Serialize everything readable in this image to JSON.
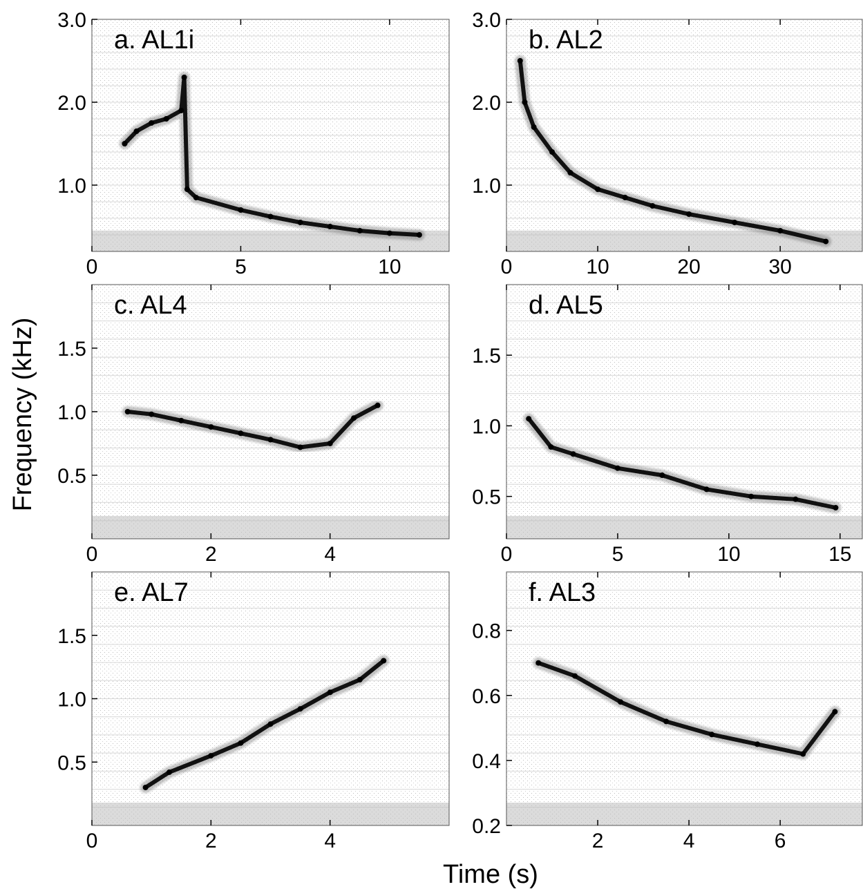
{
  "figure": {
    "ylabel": "Frequency (kHz)",
    "xlabel": "Time (s)"
  },
  "chart_data": [
    {
      "id": "a",
      "type": "spectrogram",
      "title": "a. AL1i",
      "xlim": [
        0,
        12
      ],
      "ylim": [
        0.2,
        3.0
      ],
      "xticks": [
        0,
        5,
        10
      ],
      "xtick_labels": [
        "0",
        "5",
        "10"
      ],
      "yticks": [
        1.0,
        2.0,
        3.0
      ],
      "ytick_labels": [
        "1.0",
        "2.0",
        "3.0"
      ],
      "trace": [
        [
          1.1,
          1.5
        ],
        [
          1.5,
          1.65
        ],
        [
          2.0,
          1.75
        ],
        [
          2.5,
          1.8
        ],
        [
          3.0,
          1.9
        ],
        [
          3.1,
          2.3
        ],
        [
          3.2,
          0.95
        ],
        [
          3.5,
          0.85
        ],
        [
          5,
          0.7
        ],
        [
          6,
          0.62
        ],
        [
          7,
          0.55
        ],
        [
          8,
          0.5
        ],
        [
          9,
          0.45
        ],
        [
          10,
          0.42
        ],
        [
          11,
          0.4
        ]
      ]
    },
    {
      "id": "b",
      "type": "spectrogram",
      "title": "b. AL2",
      "xlim": [
        0,
        39
      ],
      "ylim": [
        0.2,
        3.0
      ],
      "xticks": [
        0,
        10,
        20,
        30
      ],
      "xtick_labels": [
        "0",
        "10",
        "20",
        "30"
      ],
      "yticks": [
        1.0,
        2.0,
        3.0
      ],
      "ytick_labels": [
        "1.0",
        "2.0",
        "3.0"
      ],
      "trace": [
        [
          1.5,
          2.5
        ],
        [
          2,
          2.0
        ],
        [
          3,
          1.7
        ],
        [
          5,
          1.4
        ],
        [
          7,
          1.15
        ],
        [
          10,
          0.95
        ],
        [
          13,
          0.85
        ],
        [
          16,
          0.75
        ],
        [
          20,
          0.65
        ],
        [
          25,
          0.55
        ],
        [
          30,
          0.45
        ],
        [
          35,
          0.32
        ]
      ]
    },
    {
      "id": "c",
      "type": "spectrogram",
      "title": "c. AL4",
      "xlim": [
        0,
        6
      ],
      "ylim": [
        0,
        2.0
      ],
      "xticks": [
        0,
        2,
        4
      ],
      "xtick_labels": [
        "0",
        "2",
        "4"
      ],
      "yticks": [
        0.5,
        1.0,
        1.5
      ],
      "ytick_labels": [
        "0.5",
        "1.0",
        "1.5"
      ],
      "trace": [
        [
          0.6,
          1.0
        ],
        [
          1.0,
          0.98
        ],
        [
          1.5,
          0.93
        ],
        [
          2.0,
          0.88
        ],
        [
          2.5,
          0.83
        ],
        [
          3.0,
          0.78
        ],
        [
          3.5,
          0.72
        ],
        [
          4.0,
          0.75
        ],
        [
          4.4,
          0.95
        ],
        [
          4.8,
          1.05
        ]
      ]
    },
    {
      "id": "d",
      "type": "spectrogram",
      "title": "d. AL5",
      "xlim": [
        0,
        16
      ],
      "ylim": [
        0.2,
        2.0
      ],
      "xticks": [
        0,
        5,
        10,
        15
      ],
      "xtick_labels": [
        "0",
        "5",
        "10",
        "15"
      ],
      "yticks": [
        0.5,
        1.0,
        1.5
      ],
      "ytick_labels": [
        "0.5",
        "1.0",
        "1.5"
      ],
      "trace": [
        [
          1,
          1.05
        ],
        [
          2,
          0.85
        ],
        [
          3,
          0.8
        ],
        [
          5,
          0.7
        ],
        [
          7,
          0.65
        ],
        [
          9,
          0.55
        ],
        [
          11,
          0.5
        ],
        [
          13,
          0.48
        ],
        [
          14.8,
          0.42
        ]
      ]
    },
    {
      "id": "e",
      "type": "spectrogram",
      "title": "e. AL7",
      "xlim": [
        0,
        6
      ],
      "ylim": [
        0,
        2.0
      ],
      "xticks": [
        0,
        2,
        4
      ],
      "xtick_labels": [
        "0",
        "2",
        "4"
      ],
      "yticks": [
        0.5,
        1.0,
        1.5
      ],
      "ytick_labels": [
        "0.5",
        "1.0",
        "1.5"
      ],
      "trace": [
        [
          0.9,
          0.3
        ],
        [
          1.3,
          0.42
        ],
        [
          2.0,
          0.55
        ],
        [
          2.5,
          0.65
        ],
        [
          3.0,
          0.8
        ],
        [
          3.5,
          0.92
        ],
        [
          4.0,
          1.05
        ],
        [
          4.5,
          1.15
        ],
        [
          4.9,
          1.3
        ]
      ]
    },
    {
      "id": "f",
      "type": "spectrogram",
      "title": "f. AL3",
      "xlim": [
        0,
        7.8
      ],
      "ylim": [
        0.2,
        0.98
      ],
      "xticks": [
        2,
        4,
        6
      ],
      "xtick_labels": [
        "2",
        "4",
        "6"
      ],
      "yticks": [
        0.2,
        0.4,
        0.6,
        0.8
      ],
      "ytick_labels": [
        "0.2",
        "0.4",
        "0.6",
        "0.8"
      ],
      "trace": [
        [
          0.7,
          0.7
        ],
        [
          1.5,
          0.66
        ],
        [
          2.5,
          0.58
        ],
        [
          3.5,
          0.52
        ],
        [
          4.5,
          0.48
        ],
        [
          5.5,
          0.45
        ],
        [
          6.5,
          0.42
        ],
        [
          7.2,
          0.55
        ]
      ]
    }
  ]
}
